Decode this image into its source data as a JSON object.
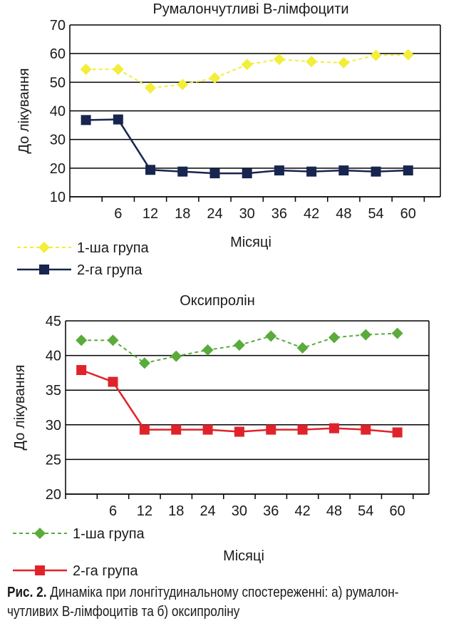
{
  "chart_data": [
    {
      "type": "line",
      "title": "Румалончутливі В-лімфоцити",
      "xlabel": "Місяці",
      "ylabel": "До лікування",
      "ylim": [
        10,
        70
      ],
      "yticks": [
        10,
        20,
        30,
        40,
        50,
        60,
        70
      ],
      "categories": [
        "",
        "6",
        "12",
        "18",
        "24",
        "30",
        "36",
        "42",
        "48",
        "54",
        "60"
      ],
      "grid": true,
      "legend_position": "bottom-left",
      "series": [
        {
          "name": "1-ша група",
          "color": "#f2ee3a",
          "marker": "diamond",
          "dashed": true,
          "values": [
            54.5,
            54.5,
            48,
            49.2,
            51.5,
            56.2,
            58,
            57.2,
            56.8,
            59.4,
            59.6
          ]
        },
        {
          "name": "2-га група",
          "color": "#17254f",
          "marker": "square",
          "dashed": false,
          "values": [
            36.8,
            37,
            19.4,
            18.8,
            18.2,
            18.2,
            19.2,
            18.8,
            19.2,
            18.8,
            19.2
          ]
        }
      ]
    },
    {
      "type": "line",
      "title": "Оксипролін",
      "xlabel": "Місяці",
      "ylabel": "До лікування",
      "ylim": [
        20,
        45
      ],
      "yticks": [
        20,
        25,
        30,
        35,
        40,
        45
      ],
      "categories": [
        "",
        "6",
        "12",
        "18",
        "24",
        "30",
        "36",
        "42",
        "48",
        "54",
        "60"
      ],
      "grid": true,
      "legend_position": "bottom-left",
      "series": [
        {
          "name": "1-ша група",
          "color": "#5aab3c",
          "marker": "diamond",
          "dashed": true,
          "values": [
            42.2,
            42.2,
            38.9,
            39.9,
            40.8,
            41.5,
            42.8,
            41.1,
            42.6,
            43,
            43.2
          ]
        },
        {
          "name": "2-га група",
          "color": "#e0232a",
          "marker": "square",
          "dashed": false,
          "values": [
            37.9,
            36.2,
            29.3,
            29.3,
            29.3,
            29,
            29.3,
            29.3,
            29.5,
            29.3,
            28.9
          ]
        }
      ]
    }
  ],
  "caption": {
    "label": "Рис. 2.",
    "text": " Динаміка при лонгітудинальному спостереженні: а) румалон-чутливих В-лімфоцитів та б) оксипроліну"
  }
}
